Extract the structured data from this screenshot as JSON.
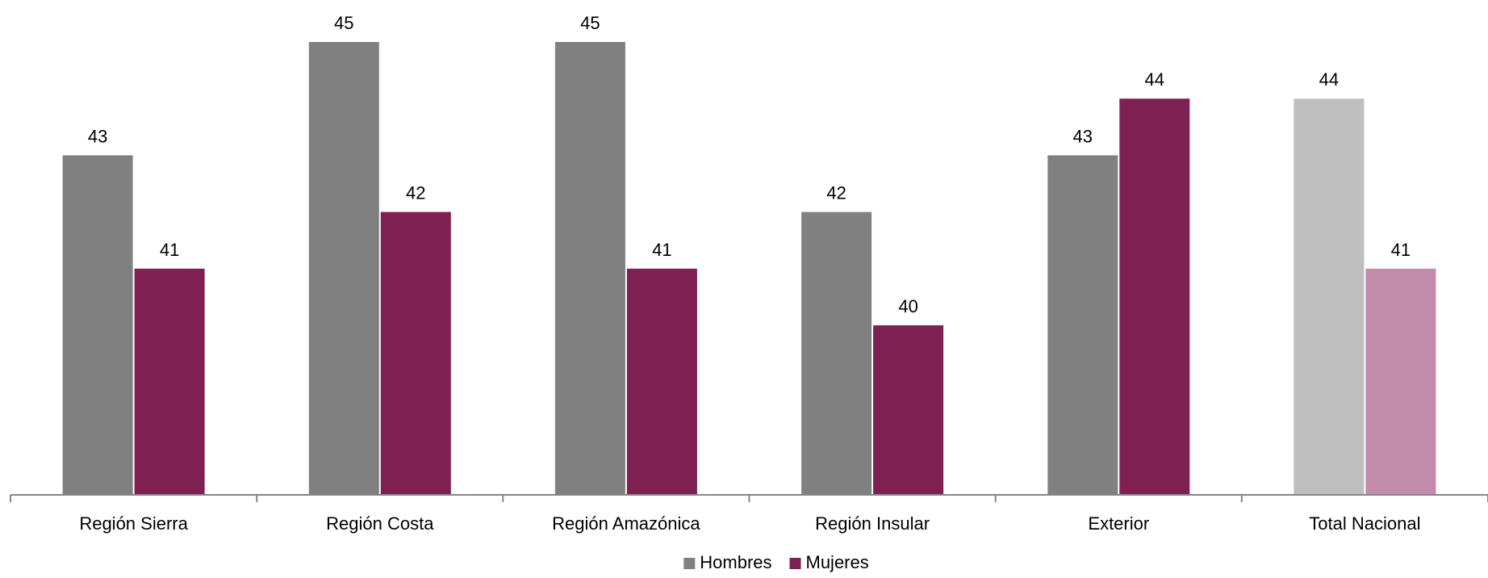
{
  "chart_data": {
    "type": "bar",
    "categories": [
      "Región Sierra",
      "Región Costa",
      "Región Amazónica",
      "Región Insular",
      "Exterior",
      "Total Nacional"
    ],
    "series": [
      {
        "name": "Hombres",
        "values": [
          43,
          45,
          45,
          42,
          43,
          44
        ],
        "color": "#808080",
        "highlight_colors": {
          "Total Nacional": "#bfbfbf"
        }
      },
      {
        "name": "Mujeres",
        "values": [
          41,
          42,
          41,
          40,
          44,
          41
        ],
        "color": "#7f2052",
        "highlight_colors": {
          "Total Nacional": "#c08caa"
        }
      }
    ],
    "data_labels": true,
    "legend_position": "bottom",
    "grid": false
  }
}
